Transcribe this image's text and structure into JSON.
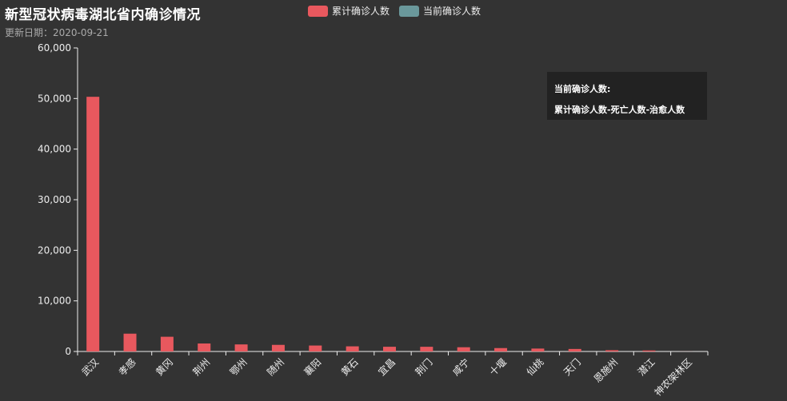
{
  "chart_data": {
    "type": "bar",
    "title": "新型冠状病毒湖北省内确诊情况",
    "subtitle": "更新日期：2020-09-21",
    "categories": [
      "武汉",
      "孝感",
      "黄冈",
      "荆州",
      "鄂州",
      "随州",
      "襄阳",
      "黄石",
      "宜昌",
      "荆门",
      "咸宁",
      "十堰",
      "仙桃",
      "天门",
      "恩施州",
      "潜江",
      "神农架林区"
    ],
    "series": [
      {
        "name": "累计确诊人数",
        "color": "#e8585e",
        "values": [
          50340,
          3518,
          2907,
          1580,
          1394,
          1307,
          1175,
          1015,
          931,
          928,
          836,
          672,
          575,
          496,
          252,
          198,
          11
        ]
      },
      {
        "name": "当前确诊人数",
        "color": "#6a989b",
        "values": [
          0,
          0,
          0,
          0,
          0,
          0,
          0,
          0,
          0,
          0,
          0,
          0,
          0,
          0,
          0,
          0,
          0
        ]
      }
    ],
    "ylim": [
      0,
      60000
    ],
    "yticks": [
      0,
      10000,
      20000,
      30000,
      40000,
      50000,
      60000
    ],
    "ytick_labels": [
      "0",
      "10,000",
      "20,000",
      "30,000",
      "40,000",
      "50,000",
      "60,000"
    ],
    "legend_position": "top-center",
    "grid": false
  },
  "tooltip": {
    "line1": "当前确诊人数:",
    "line2": "累计确诊人数-死亡人数-治愈人数"
  }
}
